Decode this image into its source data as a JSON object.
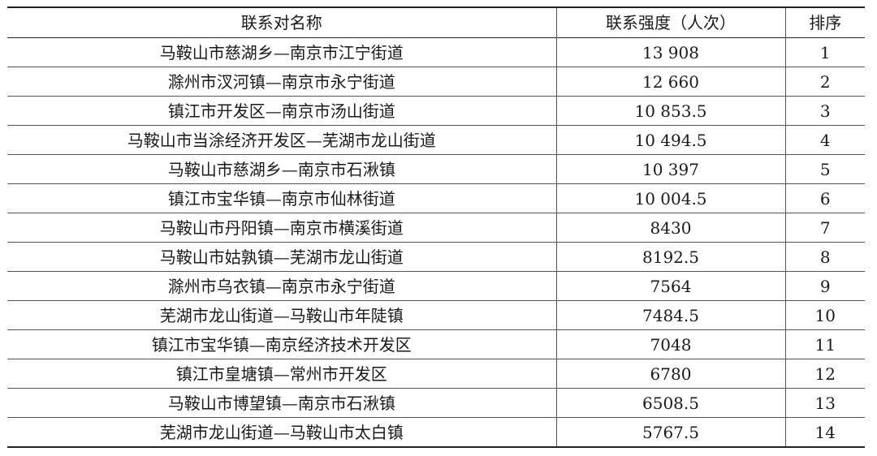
{
  "table": {
    "headers": [
      "联系对名称",
      "联系强度（人次）",
      "排序"
    ],
    "rows": [
      {
        "name": "马鞍山市慈湖乡—南京市江宁街道",
        "value": "13 908",
        "rank": "1"
      },
      {
        "name": "滁州市汊河镇—南京市永宁街道",
        "value": "12 660",
        "rank": "2"
      },
      {
        "name": "镇江市开发区—南京市汤山街道",
        "value": "10 853.5",
        "rank": "3"
      },
      {
        "name": "马鞍山市当涂经济开发区—芜湖市龙山街道",
        "value": "10 494.5",
        "rank": "4"
      },
      {
        "name": "马鞍山市慈湖乡—南京市石湫镇",
        "value": "10 397",
        "rank": "5"
      },
      {
        "name": "镇江市宝华镇—南京市仙林街道",
        "value": "10 004.5",
        "rank": "6"
      },
      {
        "name": "马鞍山市丹阳镇—南京市横溪街道",
        "value": "8430",
        "rank": "7"
      },
      {
        "name": "马鞍山市姑孰镇—芜湖市龙山街道",
        "value": "8192.5",
        "rank": "8"
      },
      {
        "name": "滁州市乌衣镇—南京市永宁街道",
        "value": "7564",
        "rank": "9"
      },
      {
        "name": "芜湖市龙山街道—马鞍山市年陡镇",
        "value": "7484.5",
        "rank": "10"
      },
      {
        "name": "镇江市宝华镇—南京经济技术开发区",
        "value": "7048",
        "rank": "11"
      },
      {
        "name": "镇江市皇塘镇—常州市开发区",
        "value": "6780",
        "rank": "12"
      },
      {
        "name": "马鞍山市博望镇—南京市石湫镇",
        "value": "6508.5",
        "rank": "13"
      },
      {
        "name": "芜湖市龙山街道—马鞍山市太白镇",
        "value": "5767.5",
        "rank": "14"
      }
    ]
  }
}
